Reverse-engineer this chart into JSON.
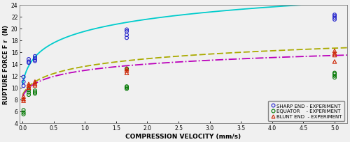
{
  "xlabel": "COMPRESSION VELOCITY (mm/s)",
  "ylabel": "RUPTURE FORCE F r  (N)",
  "xlim": [
    -0.05,
    5.2
  ],
  "ylim": [
    4,
    24
  ],
  "xticks": [
    0,
    0.5,
    1,
    1.5,
    2,
    2.5,
    3,
    3.5,
    4,
    4.5,
    5
  ],
  "yticks": [
    4,
    6,
    8,
    10,
    12,
    14,
    16,
    18,
    20,
    22,
    24
  ],
  "curve_sharp_color": "#00cccc",
  "curve_equator_color": "#aaaa00",
  "curve_blunt_color": "#bb00bb",
  "sharp_exp_x": [
    0.017,
    0.017,
    0.017,
    0.1,
    0.1,
    0.1,
    0.2,
    0.2,
    0.2,
    0.2,
    1.67,
    1.67,
    1.67,
    1.67,
    5.0,
    5.0,
    5.0,
    5.0
  ],
  "sharp_exp_y": [
    11.8,
    11.0,
    10.3,
    14.8,
    14.4,
    14.2,
    15.3,
    15.0,
    14.7,
    14.5,
    19.8,
    19.5,
    18.9,
    18.4,
    22.3,
    22.1,
    21.8,
    21.5
  ],
  "equator_exp_x": [
    0.017,
    0.017,
    0.017,
    0.1,
    0.1,
    0.1,
    0.2,
    0.2,
    0.2,
    1.67,
    1.67,
    1.67,
    1.67,
    5.0,
    5.0,
    5.0,
    5.0
  ],
  "equator_exp_y": [
    6.2,
    5.8,
    5.5,
    9.6,
    9.2,
    8.8,
    9.5,
    9.2,
    9.0,
    13.2,
    10.2,
    10.0,
    9.8,
    12.5,
    12.3,
    12.0,
    11.7
  ],
  "blunt_exp_x": [
    0.017,
    0.017,
    0.017,
    0.1,
    0.1,
    0.1,
    0.2,
    0.2,
    0.2,
    1.67,
    1.67,
    1.67,
    5.0,
    5.0,
    5.0,
    5.0
  ],
  "blunt_exp_y": [
    8.5,
    8.1,
    7.8,
    10.6,
    10.3,
    10.0,
    11.0,
    10.7,
    10.4,
    13.2,
    12.9,
    12.5,
    16.2,
    15.8,
    15.5,
    14.4
  ],
  "legend_labels": [
    "SHARP END - EXPERIMENT",
    "EQUATOR    - EXPERIMENT",
    "BLUNT END  - EXPERIMENT"
  ],
  "marker_sharp_color": "#2222cc",
  "marker_equator_color": "#007700",
  "marker_blunt_color": "#cc2200",
  "bg_color": "#f0f0f0",
  "figsize": [
    5.0,
    2.05
  ],
  "dpi": 100
}
